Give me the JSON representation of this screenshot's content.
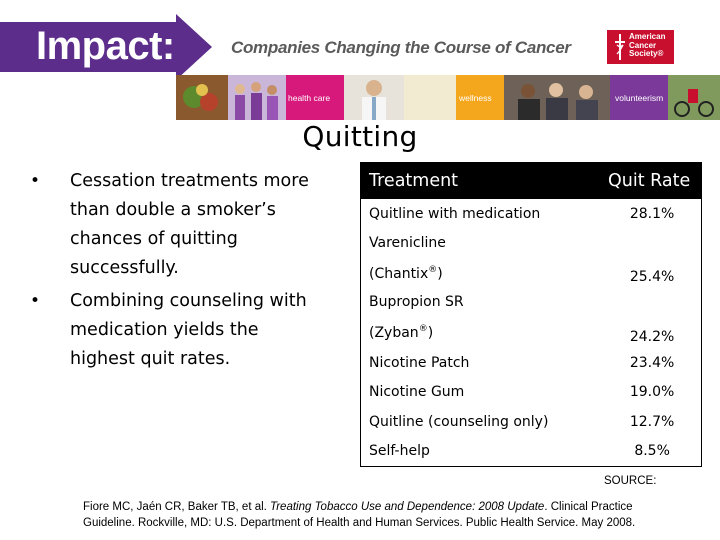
{
  "header": {
    "brand": "Impact:",
    "tagline": "Companies Changing the Course of Cancer",
    "logo_text": [
      "American",
      "Cancer",
      "Society®"
    ],
    "strip_labels": [
      "health care",
      "wellness",
      "volunteerism"
    ]
  },
  "title": "Quitting",
  "bullets": [
    "Cessation treatments more than double a smoker’s chances of quitting successfully.",
    "Combining counseling with medication yields the highest quit rates."
  ],
  "table": {
    "headers": [
      "Treatment",
      "Quit Rate"
    ],
    "rows": [
      {
        "name": "Quitline with medication",
        "rate": "28.1%"
      },
      {
        "name": "Varenicline",
        "brand": "(Chantix",
        "mark": "®",
        "close": ")",
        "rate": "25.4%"
      },
      {
        "name": "Bupropion SR",
        "brand": "(Zyban",
        "mark": "®",
        "close": ")",
        "rate": "24.2%"
      },
      {
        "name": "Nicotine Patch",
        "rate": "23.4%"
      },
      {
        "name": "Nicotine Gum",
        "rate": "19.0%"
      },
      {
        "name": "Quitline (counseling only)",
        "rate": "12.7%"
      },
      {
        "name": "Self-help",
        "rate": "8.5%"
      }
    ]
  },
  "source": {
    "label": "SOURCE:",
    "authors": "Fiore MC, Jaén CR, Baker TB, et al. ",
    "work": "Treating Tobacco Use and Dependence: 2008 Update",
    "rest": ". Clinical Practice Guideline. Rockville, MD: U.S. Department of Health and Human Services. Public Health Service. May 2008."
  },
  "colors": {
    "banner_purple": "#5c2d8a",
    "acs_red": "#c8102e",
    "strip_pink": "#d6197b",
    "strip_orange": "#f4a71d",
    "strip_purple": "#7b3a9a",
    "table_header_bg": "#000000"
  }
}
